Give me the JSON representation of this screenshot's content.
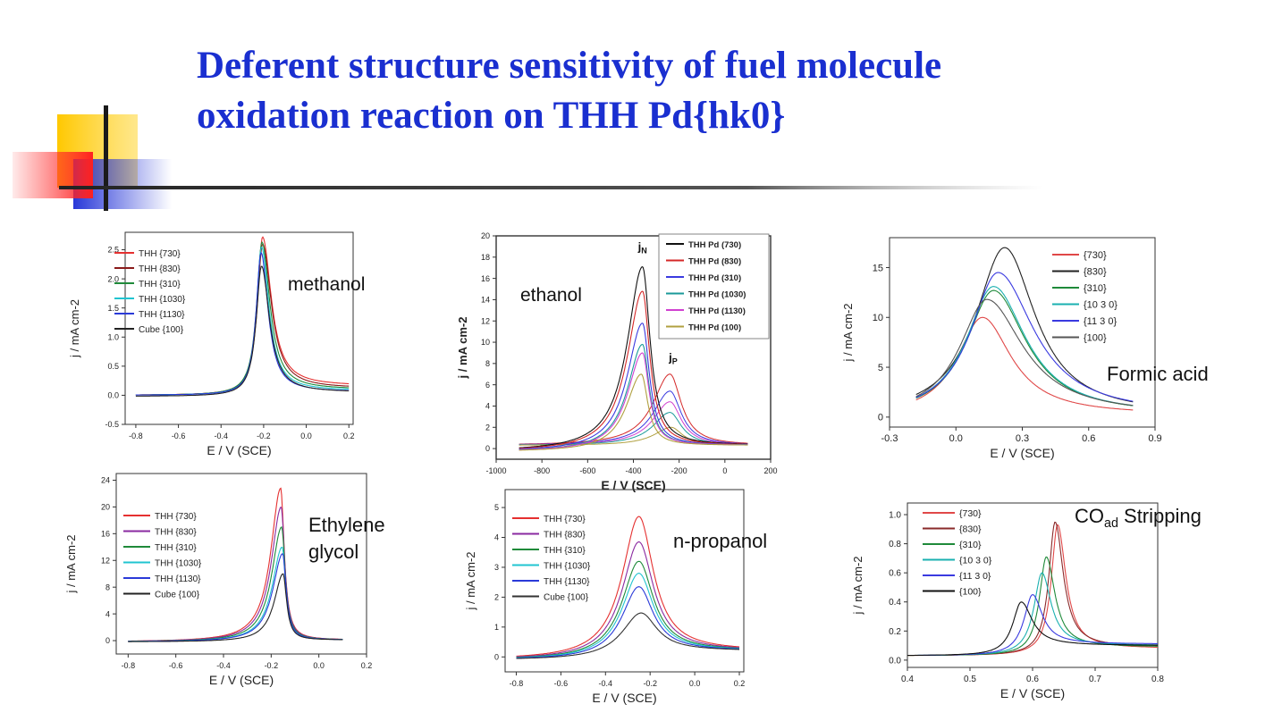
{
  "slide": {
    "title_line1": "Deferent structure sensitivity of  fuel molecule",
    "title_line2": "oxidation reaction on THH Pd{hk0}"
  },
  "chart_data": [
    {
      "id": "methanol",
      "type": "line",
      "annotation": "methanol",
      "xlabel": "E / V (SCE)",
      "ylabel": "j / mA cm-2",
      "xlim": [
        -0.85,
        0.22
      ],
      "ylim": [
        -0.5,
        2.8
      ],
      "xticks": [
        -0.8,
        -0.6,
        -0.4,
        -0.2,
        0.0,
        0.2
      ],
      "xticklabels": [
        "-0.8",
        "-0.6",
        "-0.4",
        "-0.2",
        "0.0",
        "0.2"
      ],
      "yticks": [
        -0.5,
        0.0,
        0.5,
        1.0,
        1.5,
        2.0,
        2.5
      ],
      "yticklabels": [
        "-0.5",
        "0.0",
        "0.5",
        "1.0",
        "1.5",
        "2.0",
        "2.5"
      ],
      "legend_position": "top-left",
      "x_range": [
        -0.8,
        0.2
      ],
      "series": [
        {
          "name": "THH {730}",
          "color": "#e53030",
          "peak_x": -0.205,
          "peak_y": 2.72,
          "width_left": 0.03,
          "width_right": 0.05,
          "base_left": 0.0,
          "base_right": 0.16
        },
        {
          "name": "THH {830}",
          "color": "#8a1a1a",
          "peak_x": -0.205,
          "peak_y": 2.6,
          "width_left": 0.03,
          "width_right": 0.05,
          "base_left": 0.0,
          "base_right": 0.12
        },
        {
          "name": "THH {310}",
          "color": "#1f8a3a",
          "peak_x": -0.208,
          "peak_y": 2.63,
          "width_left": 0.03,
          "width_right": 0.045,
          "base_left": 0.0,
          "base_right": 0.1
        },
        {
          "name": "THH {1030}",
          "color": "#20c4d0",
          "peak_x": -0.21,
          "peak_y": 2.55,
          "width_left": 0.028,
          "width_right": 0.042,
          "base_left": 0.0,
          "base_right": 0.08
        },
        {
          "name": "THH {1130}",
          "color": "#2a3ad8",
          "peak_x": -0.212,
          "peak_y": 2.45,
          "width_left": 0.028,
          "width_right": 0.04,
          "base_left": 0.0,
          "base_right": 0.06
        },
        {
          "name": "Cube {100}",
          "color": "#222222",
          "peak_x": -0.21,
          "peak_y": 2.22,
          "width_left": 0.03,
          "width_right": 0.045,
          "base_left": -0.02,
          "base_right": 0.05
        }
      ]
    },
    {
      "id": "ethanol",
      "type": "line",
      "annotation": "ethanol",
      "peak_labels": [
        "jN",
        "jP"
      ],
      "xlabel": "E / V (SCE)",
      "ylabel": "j / mA cm-2",
      "xlim": [
        -1000,
        200
      ],
      "ylim": [
        -1,
        20
      ],
      "xticks": [
        -1000,
        -800,
        -600,
        -400,
        -200,
        0,
        200
      ],
      "xticklabels": [
        "-1000",
        "-800",
        "-600",
        "-400",
        "-200",
        "0",
        "200"
      ],
      "yticks": [
        0,
        2,
        4,
        6,
        8,
        10,
        12,
        14,
        16,
        18,
        20
      ],
      "yticklabels": [
        "0",
        "2",
        "4",
        "6",
        "8",
        "10",
        "12",
        "14",
        "16",
        "18",
        "20"
      ],
      "legend_position": "top-right",
      "x_range": [
        -900,
        100
      ],
      "series": [
        {
          "name": "THH Pd (730)",
          "color": "#111111",
          "peak_x": -360,
          "peak_y": 17.1,
          "width_left": 80,
          "width_right": 40,
          "base_left": -0.3,
          "base_right": 0.3
        },
        {
          "name": "THH Pd (830)",
          "color": "#d42828",
          "peak_x": -360,
          "peak_y": 14.8,
          "width_left": 80,
          "width_right": 38,
          "base_left": -0.3,
          "base_right": 0.3
        },
        {
          "name": "THH Pd (310)",
          "color": "#3a3ae0",
          "peak_x": -360,
          "peak_y": 11.8,
          "width_left": 80,
          "width_right": 36,
          "base_left": -0.3,
          "base_right": 0.3
        },
        {
          "name": "THH Pd (1030)",
          "color": "#1a9a9a",
          "peak_x": -360,
          "peak_y": 9.8,
          "width_left": 78,
          "width_right": 35,
          "base_left": -0.3,
          "base_right": 0.3
        },
        {
          "name": "THH Pd (1130)",
          "color": "#d040d0",
          "peak_x": -360,
          "peak_y": 9.0,
          "width_left": 78,
          "width_right": 35,
          "base_left": -0.3,
          "base_right": 0.3
        },
        {
          "name": "THH Pd (100)",
          "color": "#b0a040",
          "peak_x": -365,
          "peak_y": 7.0,
          "width_left": 78,
          "width_right": 35,
          "base_left": -0.3,
          "base_right": 0.3
        }
      ],
      "reverse_series": [
        {
          "color": "#d42828",
          "peak_x": -240,
          "peak_y": 7.0,
          "width_left": 90,
          "width_right": 60
        },
        {
          "color": "#3a3ae0",
          "peak_x": -240,
          "peak_y": 5.4,
          "width_left": 90,
          "width_right": 60
        },
        {
          "color": "#d040d0",
          "peak_x": -240,
          "peak_y": 4.4,
          "width_left": 90,
          "width_right": 60
        },
        {
          "color": "#1a9a9a",
          "peak_x": -240,
          "peak_y": 3.4,
          "width_left": 90,
          "width_right": 60
        },
        {
          "color": "#b0a040",
          "peak_x": -235,
          "peak_y": 2.0,
          "width_left": 90,
          "width_right": 60
        }
      ]
    },
    {
      "id": "formic-acid",
      "type": "line",
      "annotation": "Formic acid",
      "xlabel": "E / V (SCE)",
      "ylabel": "j / mA cm-2",
      "xlim": [
        -0.3,
        0.9
      ],
      "ylim": [
        -1,
        18
      ],
      "xticks": [
        -0.3,
        0.0,
        0.3,
        0.6,
        0.9
      ],
      "xticklabels": [
        "-0.3",
        "0.0",
        "0.3",
        "0.6",
        "0.9"
      ],
      "yticks": [
        0,
        5,
        10,
        15
      ],
      "yticklabels": [
        "0",
        "5",
        "10",
        "15"
      ],
      "legend_position": "top-right",
      "x_range": [
        -0.18,
        0.8
      ],
      "series": [
        {
          "name": "{730}",
          "color": "#e04848",
          "peak_x": 0.12,
          "peak_y": 10.0,
          "width_left": 0.14,
          "width_right": 0.16,
          "base_left": -0.1,
          "base_right": 0.2
        },
        {
          "name": "{830}",
          "color": "#222222",
          "peak_x": 0.22,
          "peak_y": 17.0,
          "width_left": 0.16,
          "width_right": 0.17,
          "base_left": -0.1,
          "base_right": 0.2
        },
        {
          "name": "{310}",
          "color": "#1f8a3a",
          "peak_x": 0.17,
          "peak_y": 12.7,
          "width_left": 0.15,
          "width_right": 0.18,
          "base_left": -0.1,
          "base_right": 0.2
        },
        {
          "name": "{10 3 0}",
          "color": "#1ab0b0",
          "peak_x": 0.17,
          "peak_y": 13.1,
          "width_left": 0.15,
          "width_right": 0.18,
          "base_left": -0.1,
          "base_right": 0.2
        },
        {
          "name": "{11 3 0}",
          "color": "#3a3ae0",
          "peak_x": 0.19,
          "peak_y": 14.5,
          "width_left": 0.15,
          "width_right": 0.2,
          "base_left": -0.1,
          "base_right": 0.2
        },
        {
          "name": "{100}",
          "color": "#555555",
          "peak_x": 0.14,
          "peak_y": 11.8,
          "width_left": 0.15,
          "width_right": 0.2,
          "base_left": -0.1,
          "base_right": 0.2
        }
      ]
    },
    {
      "id": "ethylene-glycol",
      "type": "line",
      "annotation_line1": "Ethylene",
      "annotation_line2": "glycol",
      "xlabel": "E / V (SCE)",
      "ylabel": "j / mA cm-2",
      "xlim": [
        -0.85,
        0.2
      ],
      "ylim": [
        -2,
        25
      ],
      "xticks": [
        -0.8,
        -0.6,
        -0.4,
        -0.2,
        0.0,
        0.2
      ],
      "xticklabels": [
        "-0.8",
        "-0.6",
        "-0.4",
        "-0.2",
        "0.0",
        "0.2"
      ],
      "yticks": [
        0,
        4,
        8,
        12,
        16,
        20,
        24
      ],
      "yticklabels": [
        "0",
        "4",
        "8",
        "12",
        "16",
        "20",
        "24"
      ],
      "legend_position": "top-left",
      "x_range": [
        -0.8,
        0.1
      ],
      "series": [
        {
          "name": "THH {730}",
          "color": "#e53030",
          "peak_x": -0.16,
          "peak_y": 22.8,
          "width_left": 0.05,
          "width_right": 0.018,
          "base_left": -0.2,
          "base_right": 0.1
        },
        {
          "name": "THH {830}",
          "color": "#8a2aa0",
          "peak_x": -0.158,
          "peak_y": 20.0,
          "width_left": 0.05,
          "width_right": 0.018,
          "base_left": -0.2,
          "base_right": 0.1
        },
        {
          "name": "THH {310}",
          "color": "#1f8a3a",
          "peak_x": -0.156,
          "peak_y": 17.0,
          "width_left": 0.05,
          "width_right": 0.018,
          "base_left": -0.2,
          "base_right": 0.1
        },
        {
          "name": "THH {1030}",
          "color": "#20c4d0",
          "peak_x": -0.154,
          "peak_y": 14.0,
          "width_left": 0.05,
          "width_right": 0.018,
          "base_left": -0.2,
          "base_right": 0.1
        },
        {
          "name": "THH {1130}",
          "color": "#2a3ad8",
          "peak_x": -0.152,
          "peak_y": 13.0,
          "width_left": 0.05,
          "width_right": 0.018,
          "base_left": -0.2,
          "base_right": 0.1
        },
        {
          "name": "Cube {100}",
          "color": "#222222",
          "peak_x": -0.15,
          "peak_y": 10.0,
          "width_left": 0.045,
          "width_right": 0.018,
          "base_left": -0.2,
          "base_right": 0.1
        }
      ]
    },
    {
      "id": "n-propanol",
      "type": "line",
      "annotation": "n-propanol",
      "xlabel": "E / V (SCE)",
      "ylabel": "j / mA cm-2",
      "xlim": [
        -0.85,
        0.22
      ],
      "ylim": [
        -0.5,
        5.6
      ],
      "xticks": [
        -0.8,
        -0.6,
        -0.4,
        -0.2,
        0.0,
        0.2
      ],
      "xticklabels": [
        "-0.8",
        "-0.6",
        "-0.4",
        "-0.2",
        "0.0",
        "0.2"
      ],
      "yticks": [
        0,
        1,
        2,
        3,
        4,
        5
      ],
      "yticklabels": [
        "0",
        "1",
        "2",
        "3",
        "4",
        "5"
      ],
      "legend_position": "top-left",
      "x_range": [
        -0.8,
        0.2
      ],
      "series": [
        {
          "name": "THH {730}",
          "color": "#e53030",
          "peak_x": -0.25,
          "peak_y": 4.7,
          "width_left": 0.09,
          "width_right": 0.08,
          "base_left": -0.1,
          "base_right": 0.2
        },
        {
          "name": "THH {830}",
          "color": "#8a2aa0",
          "peak_x": -0.25,
          "peak_y": 3.85,
          "width_left": 0.09,
          "width_right": 0.08,
          "base_left": -0.1,
          "base_right": 0.2
        },
        {
          "name": "THH {310}",
          "color": "#1f8a3a",
          "peak_x": -0.25,
          "peak_y": 3.2,
          "width_left": 0.09,
          "width_right": 0.08,
          "base_left": -0.1,
          "base_right": 0.2
        },
        {
          "name": "THH {1030}",
          "color": "#20c4d0",
          "peak_x": -0.25,
          "peak_y": 2.8,
          "width_left": 0.09,
          "width_right": 0.08,
          "base_left": -0.1,
          "base_right": 0.2
        },
        {
          "name": "THH {1130}",
          "color": "#2a3ad8",
          "peak_x": -0.25,
          "peak_y": 2.35,
          "width_left": 0.09,
          "width_right": 0.08,
          "base_left": -0.1,
          "base_right": 0.2
        },
        {
          "name": "Cube {100}",
          "color": "#333333",
          "peak_x": -0.24,
          "peak_y": 1.47,
          "width_left": 0.1,
          "width_right": 0.09,
          "base_left": -0.1,
          "base_right": 0.2
        }
      ]
    },
    {
      "id": "co-stripping",
      "type": "line",
      "annotation": "COad Stripping",
      "annotation_base": "CO",
      "annotation_sub": "ad",
      "annotation_rest": " Stripping",
      "xlabel": "E / V (SCE)",
      "ylabel": "j / mA cm-2",
      "xlim": [
        0.4,
        0.8
      ],
      "ylim": [
        -0.05,
        1.08
      ],
      "xticks": [
        0.4,
        0.5,
        0.6,
        0.7,
        0.8
      ],
      "xticklabels": [
        "0.4",
        "0.5",
        "0.6",
        "0.7",
        "0.8"
      ],
      "yticks": [
        0.0,
        0.2,
        0.4,
        0.6,
        0.8,
        1.0
      ],
      "yticklabels": [
        "0.0",
        "0.2",
        "0.4",
        "0.6",
        "0.8",
        "1.0"
      ],
      "legend_position": "top-left",
      "x_range": [
        0.4,
        0.8
      ],
      "series": [
        {
          "name": "{730}",
          "color": "#e04848",
          "peak_x": 0.64,
          "peak_y": 0.93,
          "width_left": 0.012,
          "width_right": 0.016,
          "base_left": 0.03,
          "base_right": 0.08
        },
        {
          "name": "{830}",
          "color": "#8a2a2a",
          "peak_x": 0.636,
          "peak_y": 0.95,
          "width_left": 0.012,
          "width_right": 0.016,
          "base_left": 0.03,
          "base_right": 0.09
        },
        {
          "name": "{310}",
          "color": "#1f8a3a",
          "peak_x": 0.622,
          "peak_y": 0.71,
          "width_left": 0.013,
          "width_right": 0.017,
          "base_left": 0.03,
          "base_right": 0.09
        },
        {
          "name": "{10 3 0}",
          "color": "#1ab0b0",
          "peak_x": 0.615,
          "peak_y": 0.6,
          "width_left": 0.015,
          "width_right": 0.018,
          "base_left": 0.03,
          "base_right": 0.1
        },
        {
          "name": "{11 3 0}",
          "color": "#3a3ae0",
          "peak_x": 0.6,
          "peak_y": 0.45,
          "width_left": 0.016,
          "width_right": 0.02,
          "base_left": 0.03,
          "base_right": 0.11
        },
        {
          "name": "{100}",
          "color": "#111111",
          "peak_x": 0.582,
          "peak_y": 0.4,
          "width_left": 0.016,
          "width_right": 0.022,
          "base_left": 0.03,
          "base_right": 0.1
        }
      ]
    }
  ]
}
